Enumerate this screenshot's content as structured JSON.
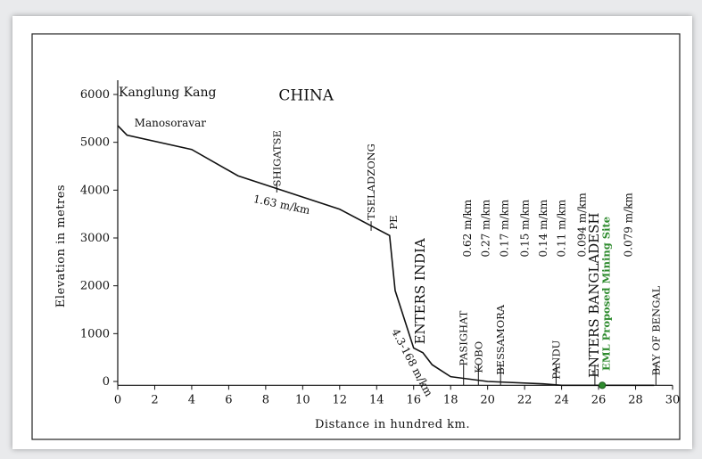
{
  "chart_data": {
    "type": "line",
    "xlabel": "Distance in hundred km.",
    "ylabel": "Elevation in metres",
    "xlim": [
      0,
      30
    ],
    "ylim": [
      0,
      6000
    ],
    "x_ticks": [
      0,
      2,
      4,
      6,
      8,
      10,
      12,
      14,
      16,
      18,
      20,
      22,
      24,
      26,
      28,
      30
    ],
    "y_ticks": [
      0,
      1000,
      2000,
      3000,
      4000,
      5000,
      6000
    ],
    "grid": false,
    "series": [
      {
        "x": [
          0,
          0.5,
          4,
          6.5,
          12,
          14.7,
          15,
          16,
          16.5,
          17,
          18,
          20,
          23,
          24,
          26,
          27,
          29
        ],
        "y": [
          5350,
          5150,
          4850,
          4300,
          3600,
          3050,
          1900,
          700,
          600,
          350,
          100,
          0,
          -50,
          -80,
          -80,
          -80,
          -80
        ]
      }
    ],
    "place_labels": [
      {
        "text": "Kanglung Kang",
        "x": 0,
        "y": 6000
      },
      {
        "text": "CHINA",
        "x": 8.7,
        "y": 5950
      },
      {
        "text": "Manosoravar",
        "x": 0.9,
        "y": 5400
      },
      {
        "text": "SHIGATSE",
        "x": 8.6,
        "y": 4000
      },
      {
        "text": "TSELADZONG",
        "x": 13.7,
        "y": 3300
      },
      {
        "text": "PE",
        "x": 14.9,
        "y": 3100
      },
      {
        "text": "ENTERS INDIA",
        "x": 16.4,
        "y": 700
      },
      {
        "text": "PASIGHAT",
        "x": 18.7,
        "y": 250
      },
      {
        "text": "KOBO",
        "x": 19.5,
        "y": 100
      },
      {
        "text": "BESSAMORA",
        "x": 20.7,
        "y": 60
      },
      {
        "text": "PANDU",
        "x": 23.7,
        "y": -30
      },
      {
        "text": "ENTERS BANGLADESH",
        "x": 25.8,
        "y": 0
      },
      {
        "text": "EML Proposed Mining Site",
        "x": 26.4,
        "y": 150,
        "color": "#2e8b2e"
      },
      {
        "text": "BAY OF BENGAL",
        "x": 29.1,
        "y": 50
      }
    ],
    "gradient_labels": [
      {
        "text": "1.63 m/km",
        "x": 7.3,
        "y": 3750,
        "angle": 12
      },
      {
        "text": "4.3-168 m/km",
        "x": 14.8,
        "y": 1050,
        "angle": 62
      },
      {
        "text": "0.62 m/km",
        "x": 19.1,
        "y": 2600,
        "angle": -90
      },
      {
        "text": "0.27 m/km",
        "x": 20.1,
        "y": 2600,
        "angle": -90
      },
      {
        "text": "0.17 m/km",
        "x": 21.1,
        "y": 2600,
        "angle": -90
      },
      {
        "text": "0.15 m/km",
        "x": 22.2,
        "y": 2600,
        "angle": -90
      },
      {
        "text": "0.14 m/km",
        "x": 23.2,
        "y": 2600,
        "angle": -90
      },
      {
        "text": "0.11 m/km",
        "x": 24.2,
        "y": 2600,
        "angle": -90
      },
      {
        "text": "0.094 m/km",
        "x": 25.3,
        "y": 2600,
        "angle": -90
      },
      {
        "text": "0.079 m/km",
        "x": 27.8,
        "y": 2600,
        "angle": -90
      }
    ],
    "marker": {
      "x": 26.2,
      "y": -80,
      "color": "#2e8b2e"
    }
  }
}
